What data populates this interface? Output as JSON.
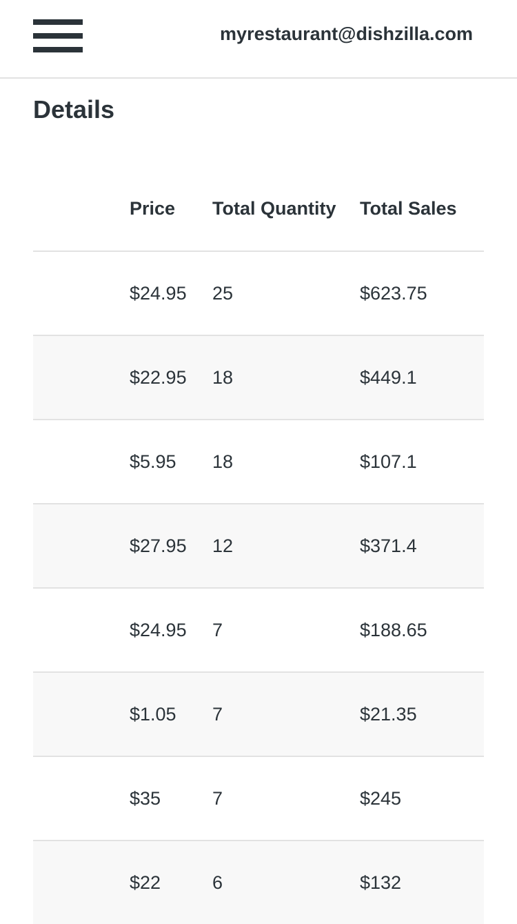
{
  "header": {
    "menu_icon": "hamburger-menu-icon",
    "account_email": "myrestaurant@dishzilla.com"
  },
  "page": {
    "title": "Details"
  },
  "table": {
    "columns": [
      "",
      "Price",
      "Total Quantity",
      "Total Sales"
    ],
    "rows": [
      {
        "price": "$24.95",
        "quantity": "25",
        "sales": "$623.75"
      },
      {
        "price": "$22.95",
        "quantity": "18",
        "sales": "$449.1"
      },
      {
        "price": "$5.95",
        "quantity": "18",
        "sales": "$107.1"
      },
      {
        "price": "$27.95",
        "quantity": "12",
        "sales": "$371.4"
      },
      {
        "price": "$24.95",
        "quantity": "7",
        "sales": "$188.65"
      },
      {
        "price": "$1.05",
        "quantity": "7",
        "sales": "$21.35"
      },
      {
        "price": "$35",
        "quantity": "7",
        "sales": "$245"
      },
      {
        "price": "$22",
        "quantity": "6",
        "sales": "$132"
      }
    ]
  },
  "colors": {
    "text": "#2b3339",
    "divider": "#e2e2e2",
    "row_stripe": "#f8f8f8",
    "background": "#ffffff"
  }
}
